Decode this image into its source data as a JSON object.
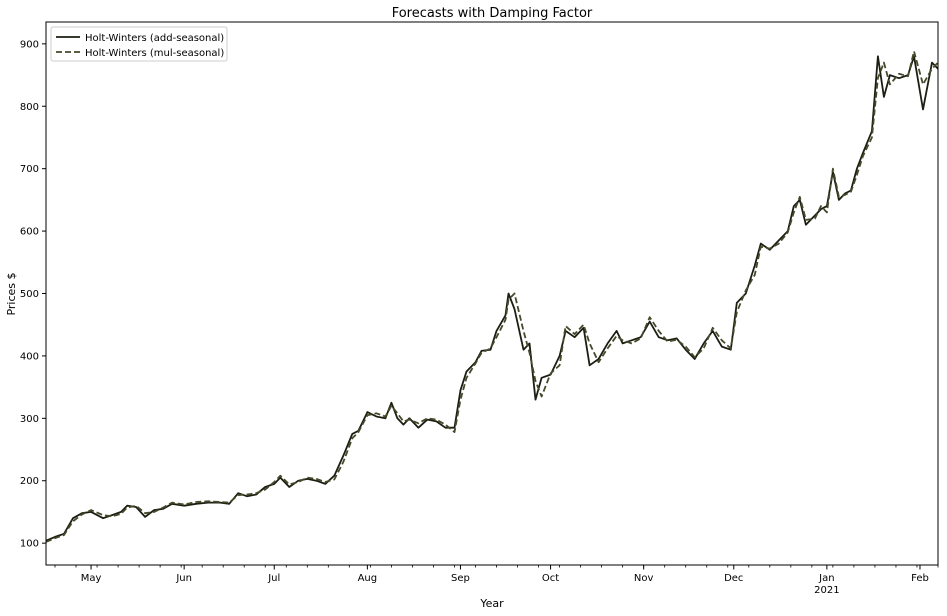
{
  "chart_data": {
    "type": "line",
    "title": "Forecasts with Damping Factor",
    "xlabel": "Year",
    "ylabel": "Prices $",
    "xlim": [
      "2020-04-16",
      "2021-02-07"
    ],
    "ylim": [
      65,
      935
    ],
    "y_ticks": [
      100,
      200,
      300,
      400,
      500,
      600,
      700,
      800,
      900
    ],
    "x_ticks": [
      {
        "date": "2020-05-01",
        "label": "May",
        "sub": ""
      },
      {
        "date": "2020-06-01",
        "label": "Jun",
        "sub": ""
      },
      {
        "date": "2020-07-01",
        "label": "Jul",
        "sub": ""
      },
      {
        "date": "2020-08-01",
        "label": "Aug",
        "sub": ""
      },
      {
        "date": "2020-09-01",
        "label": "Sep",
        "sub": ""
      },
      {
        "date": "2020-10-01",
        "label": "Oct",
        "sub": ""
      },
      {
        "date": "2020-11-01",
        "label": "Nov",
        "sub": ""
      },
      {
        "date": "2020-12-01",
        "label": "Dec",
        "sub": ""
      },
      {
        "date": "2021-01-01",
        "label": "Jan",
        "sub": "2021"
      },
      {
        "date": "2021-02-01",
        "label": "Feb",
        "sub": ""
      }
    ],
    "grid": false,
    "legend_position": "top-left",
    "series": [
      {
        "name": "Holt-Winters (add-seasonal)",
        "color": "#1a1f12",
        "style": "solid",
        "points": [
          [
            "2020-04-16",
            104
          ],
          [
            "2020-04-19",
            110
          ],
          [
            "2020-04-22",
            115
          ],
          [
            "2020-04-25",
            140
          ],
          [
            "2020-04-28",
            148
          ],
          [
            "2020-05-01",
            150
          ],
          [
            "2020-05-05",
            140
          ],
          [
            "2020-05-08",
            145
          ],
          [
            "2020-05-11",
            150
          ],
          [
            "2020-05-13",
            160
          ],
          [
            "2020-05-16",
            158
          ],
          [
            "2020-05-19",
            142
          ],
          [
            "2020-05-22",
            153
          ],
          [
            "2020-05-25",
            155
          ],
          [
            "2020-05-28",
            163
          ],
          [
            "2020-06-01",
            160
          ],
          [
            "2020-06-05",
            163
          ],
          [
            "2020-06-09",
            165
          ],
          [
            "2020-06-13",
            165
          ],
          [
            "2020-06-16",
            163
          ],
          [
            "2020-06-19",
            180
          ],
          [
            "2020-06-22",
            175
          ],
          [
            "2020-06-25",
            178
          ],
          [
            "2020-06-28",
            190
          ],
          [
            "2020-07-01",
            195
          ],
          [
            "2020-07-03",
            205
          ],
          [
            "2020-07-06",
            190
          ],
          [
            "2020-07-09",
            200
          ],
          [
            "2020-07-12",
            203
          ],
          [
            "2020-07-15",
            200
          ],
          [
            "2020-07-18",
            195
          ],
          [
            "2020-07-21",
            208
          ],
          [
            "2020-07-24",
            240
          ],
          [
            "2020-07-27",
            275
          ],
          [
            "2020-07-29",
            280
          ],
          [
            "2020-08-01",
            310
          ],
          [
            "2020-08-04",
            303
          ],
          [
            "2020-08-07",
            300
          ],
          [
            "2020-08-09",
            325
          ],
          [
            "2020-08-11",
            300
          ],
          [
            "2020-08-13",
            290
          ],
          [
            "2020-08-15",
            300
          ],
          [
            "2020-08-18",
            285
          ],
          [
            "2020-08-21",
            298
          ],
          [
            "2020-08-24",
            295
          ],
          [
            "2020-08-27",
            285
          ],
          [
            "2020-08-30",
            285
          ],
          [
            "2020-09-01",
            345
          ],
          [
            "2020-09-03",
            375
          ],
          [
            "2020-09-06",
            390
          ],
          [
            "2020-09-08",
            408
          ],
          [
            "2020-09-11",
            410
          ],
          [
            "2020-09-13",
            440
          ],
          [
            "2020-09-16",
            465
          ],
          [
            "2020-09-17",
            500
          ],
          [
            "2020-09-19",
            475
          ],
          [
            "2020-09-22",
            410
          ],
          [
            "2020-09-24",
            420
          ],
          [
            "2020-09-26",
            330
          ],
          [
            "2020-09-28",
            365
          ],
          [
            "2020-10-01",
            370
          ],
          [
            "2020-10-04",
            400
          ],
          [
            "2020-10-06",
            440
          ],
          [
            "2020-10-09",
            430
          ],
          [
            "2020-10-12",
            445
          ],
          [
            "2020-10-14",
            385
          ],
          [
            "2020-10-17",
            395
          ],
          [
            "2020-10-20",
            420
          ],
          [
            "2020-10-23",
            440
          ],
          [
            "2020-10-25",
            420
          ],
          [
            "2020-10-28",
            425
          ],
          [
            "2020-10-31",
            430
          ],
          [
            "2020-11-03",
            455
          ],
          [
            "2020-11-06",
            430
          ],
          [
            "2020-11-09",
            425
          ],
          [
            "2020-11-12",
            428
          ],
          [
            "2020-11-15",
            410
          ],
          [
            "2020-11-18",
            395
          ],
          [
            "2020-11-21",
            420
          ],
          [
            "2020-11-24",
            440
          ],
          [
            "2020-11-27",
            415
          ],
          [
            "2020-11-30",
            410
          ],
          [
            "2020-12-02",
            485
          ],
          [
            "2020-12-05",
            500
          ],
          [
            "2020-12-08",
            545
          ],
          [
            "2020-12-10",
            580
          ],
          [
            "2020-12-13",
            570
          ],
          [
            "2020-12-16",
            585
          ],
          [
            "2020-12-19",
            600
          ],
          [
            "2020-12-21",
            640
          ],
          [
            "2020-12-23",
            650
          ],
          [
            "2020-12-25",
            610
          ],
          [
            "2020-12-28",
            625
          ],
          [
            "2020-12-30",
            635
          ],
          [
            "2021-01-01",
            640
          ],
          [
            "2021-01-03",
            695
          ],
          [
            "2021-01-05",
            650
          ],
          [
            "2021-01-07",
            660
          ],
          [
            "2021-01-09",
            665
          ],
          [
            "2021-01-11",
            700
          ],
          [
            "2021-01-13",
            725
          ],
          [
            "2021-01-16",
            760
          ],
          [
            "2021-01-18",
            880
          ],
          [
            "2021-01-20",
            815
          ],
          [
            "2021-01-22",
            850
          ],
          [
            "2021-01-25",
            845
          ],
          [
            "2021-01-28",
            850
          ],
          [
            "2021-01-30",
            880
          ],
          [
            "2021-02-02",
            795
          ],
          [
            "2021-02-05",
            870
          ],
          [
            "2021-02-07",
            860
          ]
        ]
      },
      {
        "name": "Holt-Winters (mul-seasonal)",
        "color": "#464a2a",
        "style": "dashed",
        "points": [
          [
            "2020-04-16",
            102
          ],
          [
            "2020-04-19",
            108
          ],
          [
            "2020-04-22",
            113
          ],
          [
            "2020-04-25",
            135
          ],
          [
            "2020-04-28",
            146
          ],
          [
            "2020-05-01",
            153
          ],
          [
            "2020-05-05",
            145
          ],
          [
            "2020-05-08",
            143
          ],
          [
            "2020-05-11",
            147
          ],
          [
            "2020-05-13",
            157
          ],
          [
            "2020-05-16",
            160
          ],
          [
            "2020-05-19",
            148
          ],
          [
            "2020-05-22",
            150
          ],
          [
            "2020-05-25",
            157
          ],
          [
            "2020-05-28",
            165
          ],
          [
            "2020-06-01",
            162
          ],
          [
            "2020-06-05",
            166
          ],
          [
            "2020-06-09",
            167
          ],
          [
            "2020-06-13",
            166
          ],
          [
            "2020-06-16",
            165
          ],
          [
            "2020-06-19",
            177
          ],
          [
            "2020-06-22",
            178
          ],
          [
            "2020-06-25",
            180
          ],
          [
            "2020-06-28",
            186
          ],
          [
            "2020-07-01",
            198
          ],
          [
            "2020-07-03",
            208
          ],
          [
            "2020-07-06",
            194
          ],
          [
            "2020-07-09",
            198
          ],
          [
            "2020-07-12",
            205
          ],
          [
            "2020-07-15",
            203
          ],
          [
            "2020-07-18",
            198
          ],
          [
            "2020-07-21",
            202
          ],
          [
            "2020-07-24",
            230
          ],
          [
            "2020-07-27",
            268
          ],
          [
            "2020-07-29",
            278
          ],
          [
            "2020-08-01",
            305
          ],
          [
            "2020-08-04",
            308
          ],
          [
            "2020-08-07",
            303
          ],
          [
            "2020-08-09",
            320
          ],
          [
            "2020-08-11",
            308
          ],
          [
            "2020-08-13",
            295
          ],
          [
            "2020-08-15",
            298
          ],
          [
            "2020-08-18",
            292
          ],
          [
            "2020-08-21",
            300
          ],
          [
            "2020-08-24",
            298
          ],
          [
            "2020-08-27",
            290
          ],
          [
            "2020-08-30",
            278
          ],
          [
            "2020-09-01",
            330
          ],
          [
            "2020-09-03",
            365
          ],
          [
            "2020-09-06",
            388
          ],
          [
            "2020-09-08",
            405
          ],
          [
            "2020-09-11",
            412
          ],
          [
            "2020-09-13",
            430
          ],
          [
            "2020-09-16",
            458
          ],
          [
            "2020-09-17",
            490
          ],
          [
            "2020-09-19",
            500
          ],
          [
            "2020-09-22",
            440
          ],
          [
            "2020-09-24",
            405
          ],
          [
            "2020-09-26",
            360
          ],
          [
            "2020-09-28",
            335
          ],
          [
            "2020-10-01",
            372
          ],
          [
            "2020-10-04",
            385
          ],
          [
            "2020-10-06",
            448
          ],
          [
            "2020-10-09",
            435
          ],
          [
            "2020-10-12",
            450
          ],
          [
            "2020-10-14",
            420
          ],
          [
            "2020-10-17",
            390
          ],
          [
            "2020-10-20",
            412
          ],
          [
            "2020-10-23",
            432
          ],
          [
            "2020-10-25",
            425
          ],
          [
            "2020-10-28",
            420
          ],
          [
            "2020-10-31",
            428
          ],
          [
            "2020-11-03",
            462
          ],
          [
            "2020-11-06",
            440
          ],
          [
            "2020-11-09",
            423
          ],
          [
            "2020-11-12",
            426
          ],
          [
            "2020-11-15",
            415
          ],
          [
            "2020-11-18",
            398
          ],
          [
            "2020-11-21",
            412
          ],
          [
            "2020-11-24",
            445
          ],
          [
            "2020-11-27",
            425
          ],
          [
            "2020-11-30",
            412
          ],
          [
            "2020-12-02",
            470
          ],
          [
            "2020-12-05",
            505
          ],
          [
            "2020-12-08",
            530
          ],
          [
            "2020-12-10",
            575
          ],
          [
            "2020-12-13",
            572
          ],
          [
            "2020-12-16",
            580
          ],
          [
            "2020-12-19",
            598
          ],
          [
            "2020-12-21",
            630
          ],
          [
            "2020-12-23",
            655
          ],
          [
            "2020-12-25",
            618
          ],
          [
            "2020-12-28",
            620
          ],
          [
            "2020-12-30",
            640
          ],
          [
            "2021-01-01",
            630
          ],
          [
            "2021-01-03",
            700
          ],
          [
            "2021-01-05",
            655
          ],
          [
            "2021-01-07",
            658
          ],
          [
            "2021-01-09",
            663
          ],
          [
            "2021-01-11",
            690
          ],
          [
            "2021-01-13",
            720
          ],
          [
            "2021-01-16",
            750
          ],
          [
            "2021-01-18",
            845
          ],
          [
            "2021-01-20",
            870
          ],
          [
            "2021-01-22",
            835
          ],
          [
            "2021-01-25",
            852
          ],
          [
            "2021-01-28",
            848
          ],
          [
            "2021-01-30",
            888
          ],
          [
            "2021-02-02",
            835
          ],
          [
            "2021-02-05",
            860
          ],
          [
            "2021-02-07",
            870
          ]
        ]
      }
    ]
  }
}
